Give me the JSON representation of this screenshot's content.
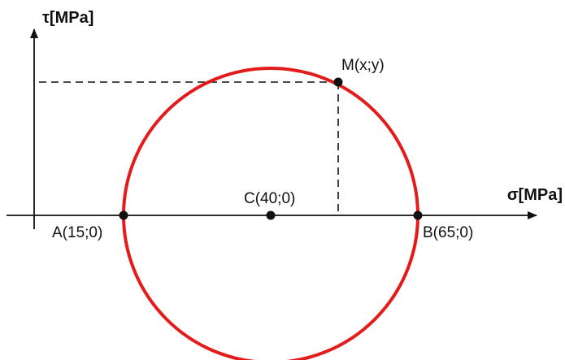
{
  "diagram": {
    "axes": {
      "y_label": "τ[MPa]",
      "x_label": "σ[MPa]"
    },
    "circle_color": "#e31b1b",
    "points": {
      "a": {
        "label": "A(15;0)"
      },
      "b": {
        "label": "B(65;0)"
      },
      "c": {
        "label": "C(40;0)"
      },
      "m": {
        "label": "M(x;y)"
      }
    }
  }
}
